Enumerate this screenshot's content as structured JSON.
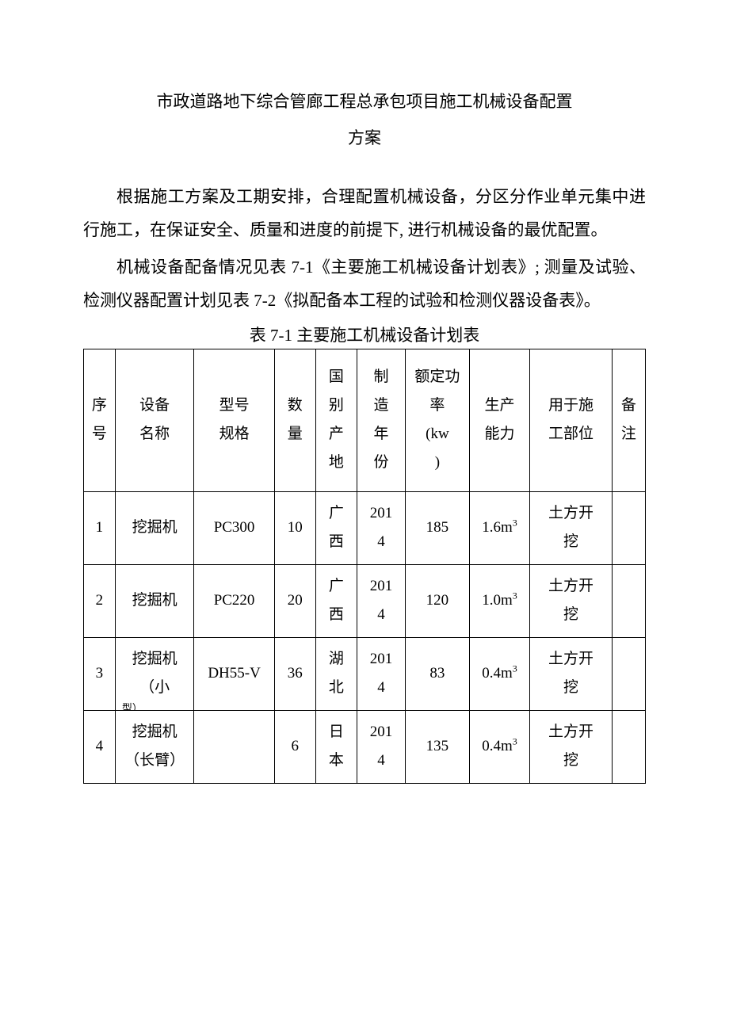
{
  "title_line1": "市政道路地下综合管廊工程总承包项目施工机械设备配置",
  "title_line2": "方案",
  "paragraph1": "根据施工方案及工期安排，合理配置机械设备，分区分作业单元集中进行施工，在保证安全、质量和进度的前提下, 进行机械设备的最优配置。",
  "paragraph2": "机械设备配备情况见表 7-1《主要施工机械设备计划表》; 测量及试验、检测仪器配置计划见表 7-2《拟配备本工程的试验和检测仪器设备表》。",
  "table": {
    "caption": "表 7-1 主要施工机械设备计划表",
    "columns": [
      {
        "label": "序号",
        "width_pct": 5.2
      },
      {
        "label": "设备名称",
        "width_pct": 13
      },
      {
        "label": "型号规格",
        "width_pct": 13.2
      },
      {
        "label": "数量",
        "width_pct": 6.8
      },
      {
        "label": "国别产地",
        "width_pct": 6.8
      },
      {
        "label": "制造年份",
        "width_pct": 8
      },
      {
        "label": "额定功率 (kw)",
        "width_pct": 10.5
      },
      {
        "label": "生产能力",
        "width_pct": 10
      },
      {
        "label": "用于施工部位",
        "width_pct": 13.5
      },
      {
        "label": "备注",
        "width_pct": 5.5
      }
    ],
    "header_lines": {
      "c0": [
        "序",
        "号"
      ],
      "c1": [
        "设备",
        "名称"
      ],
      "c2": [
        "型号",
        "规格"
      ],
      "c3": [
        "数",
        "量"
      ],
      "c4": [
        "国",
        "别",
        "产",
        "地"
      ],
      "c5": [
        "制",
        "造",
        "年",
        "份"
      ],
      "c6": [
        "额定功",
        "率",
        "(kw",
        ")"
      ],
      "c7": [
        "生产",
        "能力"
      ],
      "c8": [
        "用于施",
        "工部位"
      ],
      "c9": [
        "备",
        "注"
      ]
    },
    "rows": [
      {
        "seq": "1",
        "name": "挖掘机",
        "model": "PC300",
        "qty": "10",
        "origin_l1": "广",
        "origin_l2": "西",
        "year_l1": "201",
        "year_l2": "4",
        "power": "185",
        "capacity_val": "1.6m",
        "capacity_sup": "3",
        "use_l1": "土方开",
        "use_l2": "挖",
        "remark": ""
      },
      {
        "seq": "2",
        "name": "挖掘机",
        "model": "PC220",
        "qty": "20",
        "origin_l1": "广",
        "origin_l2": "西",
        "year_l1": "201",
        "year_l2": "4",
        "power": "120",
        "capacity_val": "1.0m",
        "capacity_sup": "3",
        "use_l1": "土方开",
        "use_l2": "挖",
        "remark": ""
      },
      {
        "seq": "3",
        "name_l1": "挖掘机",
        "name_l2": "（小",
        "name_sub": "型）",
        "model": "DH55-V",
        "qty": "36",
        "origin_l1": "湖",
        "origin_l2": "北",
        "year_l1": "201",
        "year_l2": "4",
        "power": "83",
        "capacity_val": "0.4m",
        "capacity_sup": "3",
        "use_l1": "土方开",
        "use_l2": "挖",
        "remark": ""
      },
      {
        "seq": "4",
        "name_l1": "挖掘机",
        "name_l2": "（长臂）",
        "model": "",
        "qty": "6",
        "origin_l1": "日",
        "origin_l2": "本",
        "year_l1": "201",
        "year_l2": "4",
        "power": "135",
        "capacity_val": "0.4m",
        "capacity_sup": "3",
        "use_l1": "土方开",
        "use_l2": "挖",
        "remark": ""
      }
    ],
    "border_color": "#000000",
    "font_size_pt": 14,
    "background_color": "#ffffff"
  }
}
